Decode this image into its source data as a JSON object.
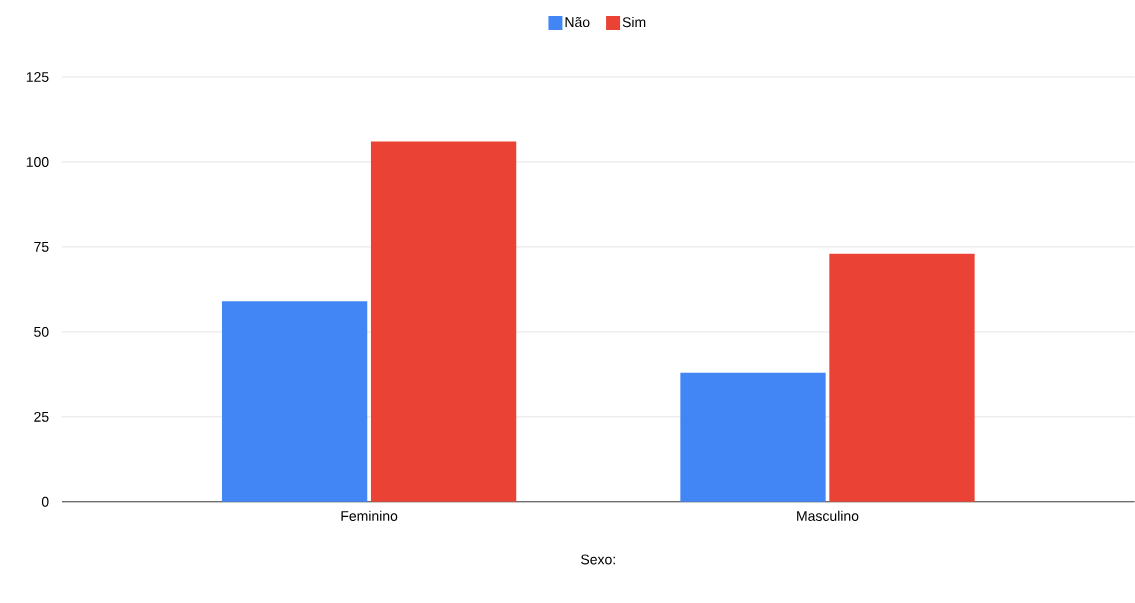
{
  "chart_data": {
    "type": "bar",
    "xlabel": "Sexo:",
    "categories": [
      "Feminino",
      "Masculino"
    ],
    "series": [
      {
        "name": "Não",
        "color": "#4285f4",
        "values": [
          59,
          38
        ]
      },
      {
        "name": "Sim",
        "color": "#ea4335",
        "values": [
          106,
          73
        ]
      }
    ],
    "ylim": [
      0,
      125
    ],
    "yticks": [
      0,
      25,
      50,
      75,
      100,
      125
    ],
    "grid": "y",
    "legend": "top"
  }
}
